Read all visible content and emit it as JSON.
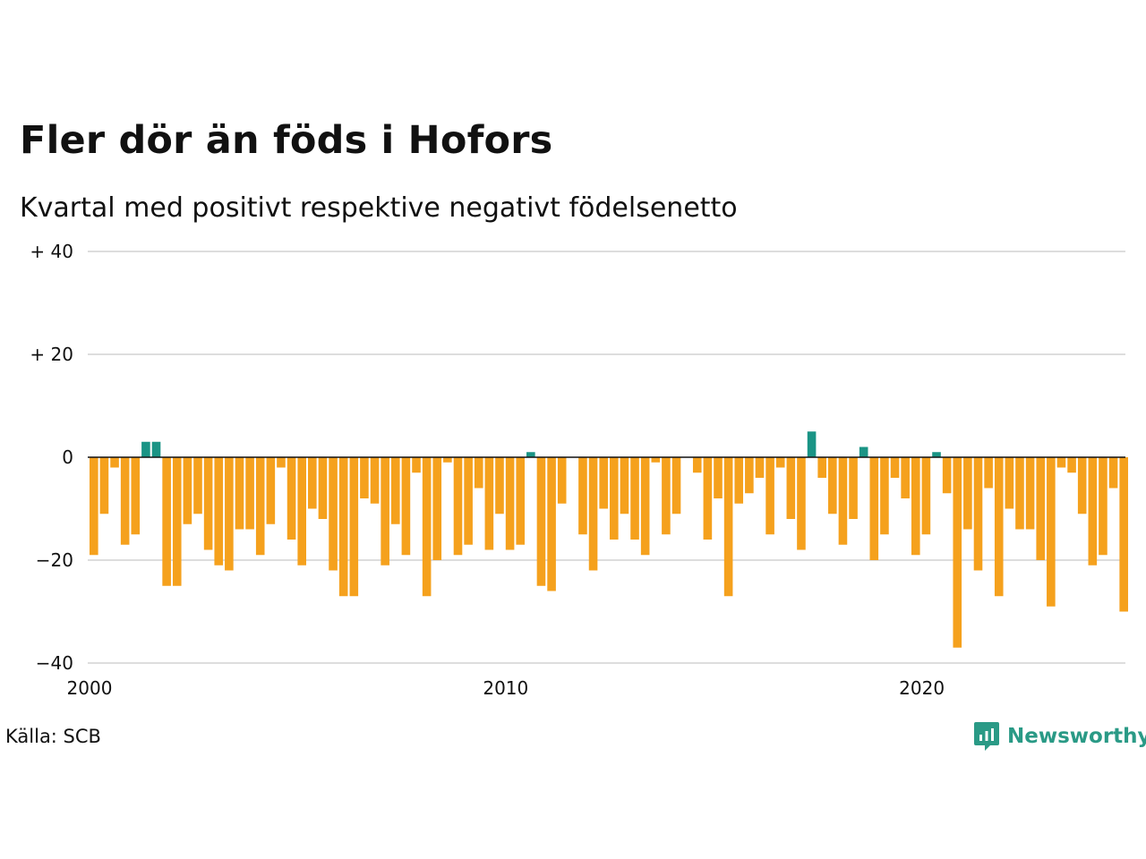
{
  "chart_data": {
    "type": "bar",
    "title": "Fler dör än föds i Hofors",
    "subtitle": "Kvartal med positivt respektive negativt födelsenetto",
    "source": "Källa: SCB",
    "brand": "Newsworthy",
    "x_start": 2000,
    "periods_per_year": 4,
    "x_ticks": [
      2000,
      2010,
      2020
    ],
    "x_tick_labels": [
      "2000",
      "2010",
      "2020"
    ],
    "ylim": [
      -40,
      40
    ],
    "y_ticks": [
      40,
      20,
      0,
      -20,
      -40
    ],
    "y_tick_labels": [
      "+ 40",
      "+ 20",
      "0",
      "−20",
      "−40"
    ],
    "grid": true,
    "colors": {
      "positive": "#1a9485",
      "negative": "#f5a11d",
      "grid": "#dddddd",
      "zero": "#111111"
    },
    "values": [
      -19,
      -11,
      -2,
      -17,
      -15,
      3,
      3,
      -25,
      -25,
      -13,
      -11,
      -18,
      -21,
      -22,
      -14,
      -14,
      -19,
      -13,
      -2,
      -16,
      -21,
      -10,
      -12,
      -22,
      -27,
      -27,
      -8,
      -9,
      -21,
      -13,
      -19,
      -3,
      -27,
      -20,
      -1,
      -19,
      -17,
      -6,
      -18,
      -11,
      -18,
      -17,
      1,
      -25,
      -26,
      -9,
      0,
      -15,
      -22,
      -10,
      -16,
      -11,
      -16,
      -19,
      -1,
      -15,
      -11,
      0,
      -3,
      -16,
      -8,
      -27,
      -9,
      -7,
      -4,
      -15,
      -2,
      -12,
      -18,
      5,
      -4,
      -11,
      -17,
      -12,
      2,
      -20,
      -15,
      -4,
      -8,
      -19,
      -15,
      1,
      -7,
      -37,
      -14,
      -22,
      -6,
      -27,
      -10,
      -14,
      -14,
      -20,
      -29,
      -2,
      -3,
      -11,
      -21,
      -19,
      -6,
      -30
    ]
  }
}
